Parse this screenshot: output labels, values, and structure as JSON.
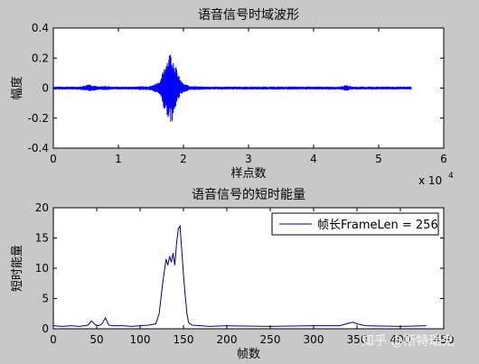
{
  "chart_data": [
    {
      "type": "line",
      "title": "语音信号时域波形",
      "xlabel": "样点数",
      "ylabel": "幅度",
      "xlim": [
        0,
        60000
      ],
      "ylim": [
        -0.4,
        0.4
      ],
      "x_ticks": [
        "0",
        "1",
        "2",
        "3",
        "4",
        "5",
        "6"
      ],
      "x_exponent": "x 10",
      "x_exponent_power": "4",
      "y_ticks": [
        "-0.4",
        "-0.2",
        "0",
        "0.2",
        "0.4"
      ],
      "series": [
        {
          "color": "#0000ff",
          "envelope_x": [
            0,
            4000,
            5000,
            5500,
            6000,
            7000,
            8000,
            9000,
            12000,
            15000,
            16500,
            17000,
            17500,
            18000,
            18500,
            19000,
            19500,
            20000,
            21000,
            23000,
            30000,
            40000,
            44000,
            45000,
            46000,
            50000,
            55000
          ],
          "envelope_upper": [
            0.01,
            0.01,
            0.02,
            0.03,
            0.02,
            0.01,
            0.015,
            0.01,
            0.01,
            0.015,
            0.05,
            0.15,
            0.2,
            0.25,
            0.2,
            0.12,
            0.06,
            0.03,
            0.015,
            0.01,
            0.01,
            0.01,
            0.01,
            0.02,
            0.01,
            0.01,
            0.01
          ],
          "envelope_lower": [
            -0.01,
            -0.01,
            -0.02,
            -0.02,
            -0.02,
            -0.01,
            -0.015,
            -0.01,
            -0.01,
            -0.015,
            -0.05,
            -0.15,
            -0.18,
            -0.24,
            -0.2,
            -0.1,
            -0.05,
            -0.03,
            -0.015,
            -0.01,
            -0.01,
            -0.01,
            -0.01,
            -0.02,
            -0.01,
            -0.01,
            -0.01
          ]
        }
      ]
    },
    {
      "type": "line",
      "title": "语音信号的短时能量",
      "xlabel": "帧数",
      "ylabel": "短时能量",
      "xlim": [
        0,
        450
      ],
      "ylim": [
        0,
        20
      ],
      "x_ticks": [
        "0",
        "50",
        "100",
        "150",
        "200",
        "250",
        "300",
        "350",
        "400",
        "450"
      ],
      "y_ticks": [
        "0",
        "5",
        "10",
        "15",
        "20"
      ],
      "legend_position": "top-right",
      "series": [
        {
          "name": "帧长FrameLen = 256",
          "color": "#00008b",
          "x": [
            0,
            10,
            20,
            30,
            40,
            44,
            48,
            52,
            56,
            60,
            64,
            70,
            80,
            90,
            100,
            110,
            118,
            122,
            126,
            128,
            130,
            132,
            134,
            136,
            138,
            140,
            142,
            144,
            146,
            148,
            150,
            152,
            154,
            156,
            160,
            170,
            180,
            200,
            250,
            300,
            330,
            340,
            345,
            350,
            360,
            400,
            430
          ],
          "y": [
            0.5,
            0.4,
            0.5,
            0.4,
            0.6,
            1.3,
            0.7,
            0.5,
            0.8,
            1.8,
            0.6,
            0.5,
            0.5,
            0.4,
            0.5,
            0.6,
            0.8,
            2.5,
            7.5,
            9.5,
            11.5,
            10.5,
            12,
            11,
            12.5,
            10.5,
            14,
            16.5,
            17,
            13,
            9,
            5.5,
            2.5,
            1,
            0.6,
            0.5,
            0.4,
            0.5,
            0.4,
            0.5,
            0.5,
            0.9,
            1.1,
            0.8,
            0.5,
            0.4,
            0.5
          ]
        }
      ]
    }
  ],
  "watermark": "知乎 @斯特瑞克"
}
